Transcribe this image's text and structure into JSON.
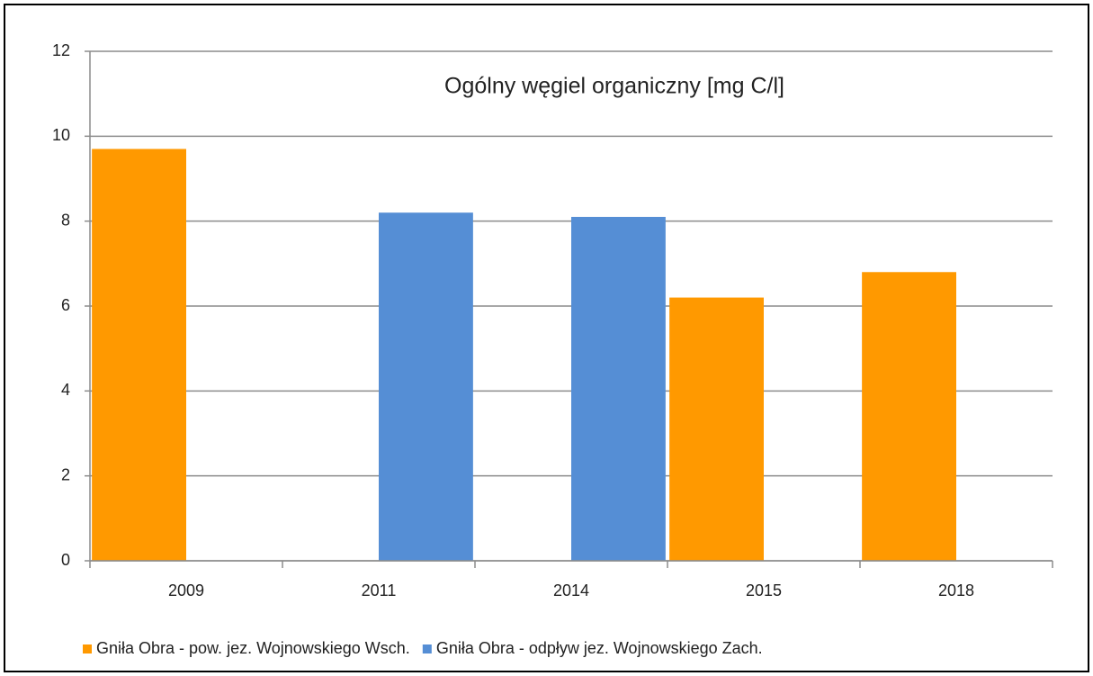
{
  "chart_data": {
    "type": "bar",
    "title": "Ogólny węgiel organiczny [mg C/l]",
    "categories": [
      "2009",
      "2011",
      "2014",
      "2015",
      "2018"
    ],
    "series": [
      {
        "name": "Gniła Obra - pow. jez. Wojnowskiego Wsch.",
        "color": "#ff9900",
        "values": [
          9.7,
          null,
          null,
          6.2,
          6.8
        ]
      },
      {
        "name": "Gniła Obra - odpływ jez. Wojnowskiego Zach.",
        "color": "#558ed5",
        "values": [
          null,
          8.2,
          8.1,
          null,
          null
        ]
      }
    ],
    "ylim": [
      0,
      12
    ],
    "yticks": [
      0,
      2,
      4,
      6,
      8,
      10,
      12
    ],
    "grid": true,
    "legend": "bottom"
  }
}
